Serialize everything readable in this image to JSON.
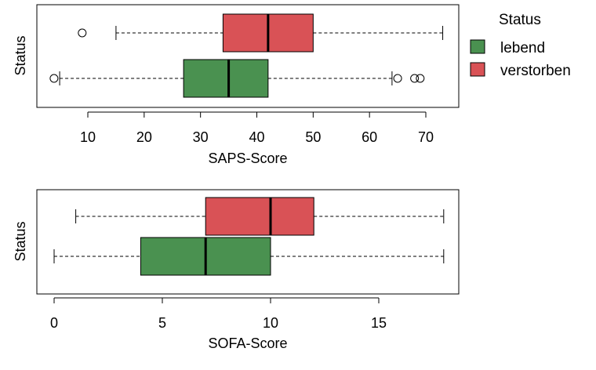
{
  "colors": {
    "lebend": "#4a9150",
    "verstorben": "#d95256",
    "line": "#000000"
  },
  "legend": {
    "title": "Status",
    "items": [
      {
        "label": "lebend",
        "color": "#4a9150"
      },
      {
        "label": "verstorben",
        "color": "#d95256"
      }
    ]
  },
  "chart_data": [
    {
      "type": "boxplot",
      "orientation": "horizontal",
      "xlabel": "SAPS-Score",
      "ylabel": "Status",
      "xlim": [
        3,
        74
      ],
      "xticks": [
        10,
        20,
        30,
        40,
        50,
        60,
        70
      ],
      "legend_placement": "right",
      "series": [
        {
          "name": "verstorben",
          "color": "#d95256",
          "whisker_low": 15,
          "q1": 34,
          "median": 42,
          "q3": 50,
          "whisker_high": 73,
          "outliers": [
            9
          ]
        },
        {
          "name": "lebend",
          "color": "#4a9150",
          "whisker_low": 5,
          "q1": 27,
          "median": 35,
          "q3": 42,
          "whisker_high": 64,
          "outliers": [
            4,
            65,
            68,
            69
          ]
        }
      ]
    },
    {
      "type": "boxplot",
      "orientation": "horizontal",
      "xlabel": "SOFA-Score",
      "ylabel": "Status",
      "xlim": [
        -0.5,
        18.5
      ],
      "xticks": [
        0,
        5,
        10,
        15
      ],
      "series": [
        {
          "name": "verstorben",
          "color": "#d95256",
          "whisker_low": 1,
          "q1": 7,
          "median": 10,
          "q3": 12,
          "whisker_high": 18,
          "outliers": []
        },
        {
          "name": "lebend",
          "color": "#4a9150",
          "whisker_low": 0,
          "q1": 4,
          "median": 7,
          "q3": 10,
          "whisker_high": 18,
          "outliers": []
        }
      ]
    }
  ]
}
